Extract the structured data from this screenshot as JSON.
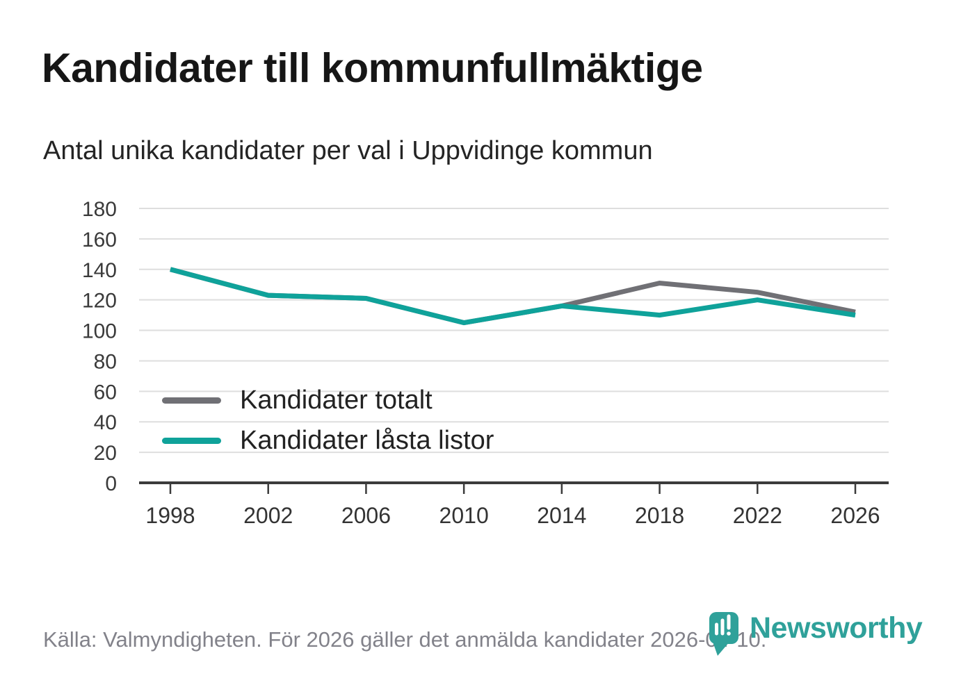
{
  "page": {
    "title": "Kandidater till kommunfullmäktige",
    "subtitle": "Antal unika kandidater per val i Uppvidinge kommun",
    "source_note": "Källa: Valmyndigheten. För 2026 gäller det anmälda kandidater 2026-04-10."
  },
  "branding": {
    "logo_text": "Newsworthy",
    "logo_icon": "newsworthy-pin-bar-chart-icon",
    "logo_color": "#2fa19a"
  },
  "colors": {
    "grid": "#dedede",
    "axis": "#3b3b3b",
    "tick_label": "#3a3a3a",
    "title_text": "#161616",
    "subtitle_text": "#242424",
    "footer_text": "#82828a"
  },
  "chart_data": {
    "type": "line",
    "title": "Kandidater till kommunfullmäktige",
    "subtitle": "Antal unika kandidater per val i Uppvidinge kommun",
    "categories": [
      "1998",
      "2002",
      "2006",
      "2010",
      "2014",
      "2018",
      "2022",
      "2026"
    ],
    "series": [
      {
        "name": "Kandidater totalt",
        "color": "#707075",
        "values": [
          140,
          123,
          121,
          105,
          116,
          131,
          125,
          112
        ]
      },
      {
        "name": "Kandidater låsta listor",
        "color": "#0fa29a",
        "values": [
          140,
          123,
          121,
          105,
          116,
          110,
          120,
          110
        ]
      }
    ],
    "ylim": [
      0,
      180
    ],
    "y_ticks": [
      0,
      20,
      40,
      60,
      80,
      100,
      120,
      140,
      160,
      180
    ],
    "grid": "horizontal",
    "legend_position": "inside-bottom-left",
    "line_width": 7
  }
}
